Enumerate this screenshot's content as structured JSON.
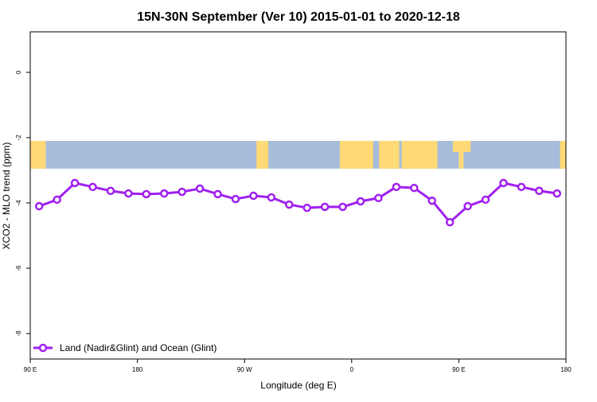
{
  "chart_data": {
    "type": "line",
    "title": "15N-30N September (Ver 10)   2015-01-01 to 2020-12-18",
    "xlabel": "Longitude (deg E)",
    "ylabel": "XCO2 - MLO trend (ppm)",
    "xlim": [
      90,
      540
    ],
    "ylim": [
      -8.78,
      1.24
    ],
    "xticks": [
      {
        "value": 90,
        "label": "90 E"
      },
      {
        "value": 180,
        "label": "180"
      },
      {
        "value": 270,
        "label": "90 W"
      },
      {
        "value": 360,
        "label": "0"
      },
      {
        "value": 450,
        "label": "90 E"
      },
      {
        "value": 540,
        "label": "180"
      }
    ],
    "yticks": [
      {
        "value": 0,
        "label": "0"
      },
      {
        "value": -2,
        "label": "-2"
      },
      {
        "value": -4,
        "label": "-4"
      },
      {
        "value": -6,
        "label": "-6"
      },
      {
        "value": -8,
        "label": "-8"
      }
    ],
    "grid": false,
    "legend_position": "bottom-left",
    "series": [
      {
        "name": "Land (Nadir&Glint) and Ocean (Glint)",
        "color": "#a020f0",
        "x": [
          97.5,
          112.5,
          127.5,
          142.5,
          157.5,
          172.5,
          187.5,
          202.5,
          217.5,
          232.5,
          247.5,
          262.5,
          277.5,
          292.5,
          307.5,
          322.5,
          337.5,
          352.5,
          367.5,
          382.5,
          397.5,
          412.5,
          427.5,
          442.5,
          457.5,
          472.5,
          487.5,
          502.5,
          517.5,
          532.5
        ],
        "y": [
          -4.1,
          -3.9,
          -3.39,
          -3.51,
          -3.63,
          -3.71,
          -3.73,
          -3.71,
          -3.66,
          -3.56,
          -3.73,
          -3.88,
          -3.78,
          -3.83,
          -4.05,
          -4.15,
          -4.12,
          -4.12,
          -3.95,
          -3.85,
          -3.51,
          -3.54,
          -3.93,
          -4.59,
          -4.1,
          -3.9,
          -3.39,
          -3.51,
          -3.63,
          -3.71
        ]
      }
    ],
    "map_band": {
      "y_top": -2.1,
      "y_bottom": -2.95,
      "ocean_color": "#a7bcdb",
      "land_color": "#fed976"
    }
  }
}
